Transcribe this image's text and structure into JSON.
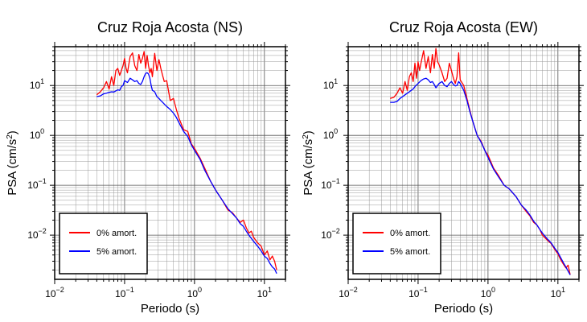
{
  "chart_data": [
    {
      "type": "line",
      "title": "Cruz Roja Acosta (NS)",
      "xlabel": "Periodo (s)",
      "ylabel": "PSA (cm/s²)",
      "xscale": "log",
      "yscale": "log",
      "xlim": [
        0.01,
        20
      ],
      "ylim": [
        0.0013,
        60
      ],
      "xticks": [
        {
          "label": "10",
          "exp": "−2"
        },
        {
          "label": "10",
          "exp": "−1"
        },
        {
          "label": "10",
          "exp": "0"
        },
        {
          "label": "10",
          "exp": "1"
        }
      ],
      "yticks": [
        {
          "label": "10",
          "exp": "−2"
        },
        {
          "label": "10",
          "exp": "−1"
        },
        {
          "label": "10",
          "exp": "0"
        },
        {
          "label": "10",
          "exp": "1"
        }
      ],
      "grid": true,
      "legend_position": "bottom-left",
      "series": [
        {
          "name": "0% amort.",
          "color": "#ff0000",
          "x": [
            0.04,
            0.045,
            0.05,
            0.055,
            0.06,
            0.065,
            0.07,
            0.075,
            0.08,
            0.085,
            0.09,
            0.095,
            0.1,
            0.105,
            0.11,
            0.12,
            0.13,
            0.14,
            0.15,
            0.16,
            0.17,
            0.18,
            0.19,
            0.2,
            0.21,
            0.22,
            0.23,
            0.24,
            0.25,
            0.27,
            0.29,
            0.31,
            0.33,
            0.35,
            0.37,
            0.4,
            0.45,
            0.5,
            0.55,
            0.6,
            0.7,
            0.8,
            0.9,
            1.0,
            1.2,
            1.4,
            1.7,
            2.0,
            2.5,
            3.0,
            3.5,
            4.0,
            4.5,
            5.0,
            5.5,
            6.0,
            6.5,
            7.0,
            8.0,
            9.0,
            10.0,
            11.0,
            12.0,
            13.0,
            14.0,
            15.0
          ],
          "y": [
            6.5,
            7.5,
            9.0,
            12.0,
            8.5,
            15.0,
            10.0,
            20.0,
            22.0,
            16.0,
            20.0,
            25.0,
            35.0,
            22.0,
            18.0,
            38.0,
            45.0,
            25.0,
            20.0,
            42.0,
            28.0,
            35.0,
            48.0,
            22.0,
            40.0,
            25.0,
            18.0,
            22.0,
            15.0,
            44.0,
            20.0,
            33.0,
            22.0,
            16.0,
            12.0,
            12.5,
            5.0,
            5.5,
            3.3,
            2.2,
            1.3,
            1.2,
            0.68,
            0.55,
            0.35,
            0.22,
            0.12,
            0.08,
            0.05,
            0.032,
            0.028,
            0.022,
            0.018,
            0.02,
            0.014,
            0.011,
            0.012,
            0.009,
            0.007,
            0.006,
            0.004,
            0.0048,
            0.0032,
            0.0038,
            0.003,
            0.002
          ]
        },
        {
          "name": "5% amort.",
          "color": "#0000ff",
          "x": [
            0.04,
            0.045,
            0.05,
            0.055,
            0.06,
            0.065,
            0.07,
            0.075,
            0.08,
            0.085,
            0.09,
            0.095,
            0.1,
            0.11,
            0.12,
            0.13,
            0.14,
            0.15,
            0.16,
            0.17,
            0.18,
            0.19,
            0.2,
            0.21,
            0.22,
            0.23,
            0.24,
            0.25,
            0.27,
            0.29,
            0.31,
            0.33,
            0.35,
            0.4,
            0.45,
            0.5,
            0.55,
            0.6,
            0.7,
            0.8,
            0.9,
            1.0,
            1.2,
            1.4,
            1.7,
            2.0,
            2.5,
            3.0,
            3.5,
            4.0,
            4.5,
            5.0,
            5.5,
            6.0,
            7.0,
            8.0,
            9.0,
            10.0,
            11.0,
            12.0,
            13.0,
            14.0,
            15.0
          ],
          "y": [
            6.0,
            6.2,
            6.8,
            7.0,
            7.3,
            7.5,
            7.4,
            7.8,
            8.2,
            8.0,
            9.5,
            10.0,
            12.5,
            11.5,
            14.0,
            13.0,
            12.0,
            12.5,
            11.0,
            10.5,
            12.0,
            15.0,
            17.5,
            18.0,
            17.0,
            14.0,
            10.0,
            8.0,
            7.5,
            6.0,
            5.5,
            5.0,
            4.6,
            3.8,
            3.3,
            2.8,
            2.3,
            1.8,
            1.2,
            0.95,
            0.65,
            0.5,
            0.33,
            0.2,
            0.12,
            0.08,
            0.05,
            0.034,
            0.027,
            0.022,
            0.017,
            0.015,
            0.012,
            0.01,
            0.0075,
            0.006,
            0.0048,
            0.0038,
            0.0034,
            0.0027,
            0.0023,
            0.0021,
            0.0017
          ]
        }
      ]
    },
    {
      "type": "line",
      "title": "Cruz Roja Acosta (EW)",
      "xlabel": "Periodo (s)",
      "ylabel": "PSA (cm/s²)",
      "xscale": "log",
      "yscale": "log",
      "xlim": [
        0.01,
        20
      ],
      "ylim": [
        0.0013,
        60
      ],
      "xticks": [
        {
          "label": "10",
          "exp": "−2"
        },
        {
          "label": "10",
          "exp": "−1"
        },
        {
          "label": "10",
          "exp": "0"
        },
        {
          "label": "10",
          "exp": "1"
        }
      ],
      "yticks": [
        {
          "label": "10",
          "exp": "−2"
        },
        {
          "label": "10",
          "exp": "−1"
        },
        {
          "label": "10",
          "exp": "0"
        },
        {
          "label": "10",
          "exp": "1"
        }
      ],
      "grid": true,
      "legend_position": "bottom-left",
      "series": [
        {
          "name": "0% amort.",
          "color": "#ff0000",
          "x": [
            0.04,
            0.045,
            0.05,
            0.055,
            0.06,
            0.065,
            0.07,
            0.075,
            0.08,
            0.085,
            0.09,
            0.095,
            0.1,
            0.105,
            0.11,
            0.12,
            0.13,
            0.14,
            0.15,
            0.16,
            0.17,
            0.18,
            0.19,
            0.2,
            0.22,
            0.24,
            0.26,
            0.28,
            0.3,
            0.32,
            0.34,
            0.36,
            0.38,
            0.4,
            0.45,
            0.5,
            0.55,
            0.6,
            0.7,
            0.8,
            0.9,
            1.0,
            1.2,
            1.4,
            1.7,
            2.0,
            2.5,
            3.0,
            3.5,
            4.0,
            4.5,
            5.0,
            5.5,
            6.0,
            7.0,
            8.0,
            9.0,
            10.0,
            11.0,
            12.0,
            13.0,
            14.0,
            15.0
          ],
          "y": [
            5.5,
            5.8,
            7.0,
            9.0,
            7.0,
            12.0,
            8.0,
            15.0,
            18.0,
            12.0,
            28.0,
            14.0,
            30.0,
            20.0,
            28.0,
            50.0,
            22.0,
            38.0,
            18.0,
            42.0,
            22.0,
            55.0,
            30.0,
            26.0,
            18.0,
            12.0,
            14.0,
            28.0,
            20.0,
            14.0,
            11.0,
            15.0,
            45.0,
            13.0,
            10.0,
            5.5,
            3.2,
            2.0,
            1.0,
            0.75,
            0.5,
            0.4,
            0.22,
            0.16,
            0.1,
            0.085,
            0.06,
            0.04,
            0.03,
            0.024,
            0.018,
            0.016,
            0.013,
            0.01,
            0.008,
            0.0068,
            0.0052,
            0.0042,
            0.0032,
            0.0026,
            0.0022,
            0.0025,
            0.0016
          ]
        },
        {
          "name": "5% amort.",
          "color": "#0000ff",
          "x": [
            0.04,
            0.045,
            0.05,
            0.055,
            0.06,
            0.065,
            0.07,
            0.075,
            0.08,
            0.085,
            0.09,
            0.1,
            0.11,
            0.12,
            0.13,
            0.14,
            0.15,
            0.16,
            0.17,
            0.18,
            0.19,
            0.2,
            0.22,
            0.24,
            0.26,
            0.28,
            0.3,
            0.32,
            0.34,
            0.36,
            0.38,
            0.4,
            0.45,
            0.5,
            0.55,
            0.6,
            0.7,
            0.8,
            0.9,
            1.0,
            1.2,
            1.4,
            1.7,
            2.0,
            2.5,
            3.0,
            3.5,
            4.0,
            4.5,
            5.0,
            5.5,
            6.0,
            7.0,
            8.0,
            9.0,
            10.0,
            11.0,
            12.0,
            13.0,
            14.0,
            15.0
          ],
          "y": [
            4.6,
            4.6,
            4.8,
            5.5,
            6.0,
            6.5,
            7.0,
            7.5,
            8.0,
            8.5,
            9.5,
            11.0,
            12.5,
            13.5,
            14.0,
            13.0,
            11.5,
            12.0,
            10.5,
            9.0,
            10.0,
            11.0,
            12.0,
            10.0,
            9.5,
            11.0,
            12.0,
            10.5,
            9.8,
            10.0,
            12.0,
            11.0,
            8.0,
            5.0,
            3.0,
            2.0,
            1.0,
            0.72,
            0.5,
            0.36,
            0.21,
            0.15,
            0.1,
            0.085,
            0.06,
            0.04,
            0.032,
            0.025,
            0.019,
            0.016,
            0.013,
            0.011,
            0.0085,
            0.007,
            0.0055,
            0.0045,
            0.0035,
            0.0028,
            0.0023,
            0.0019,
            0.0016
          ]
        }
      ]
    }
  ]
}
